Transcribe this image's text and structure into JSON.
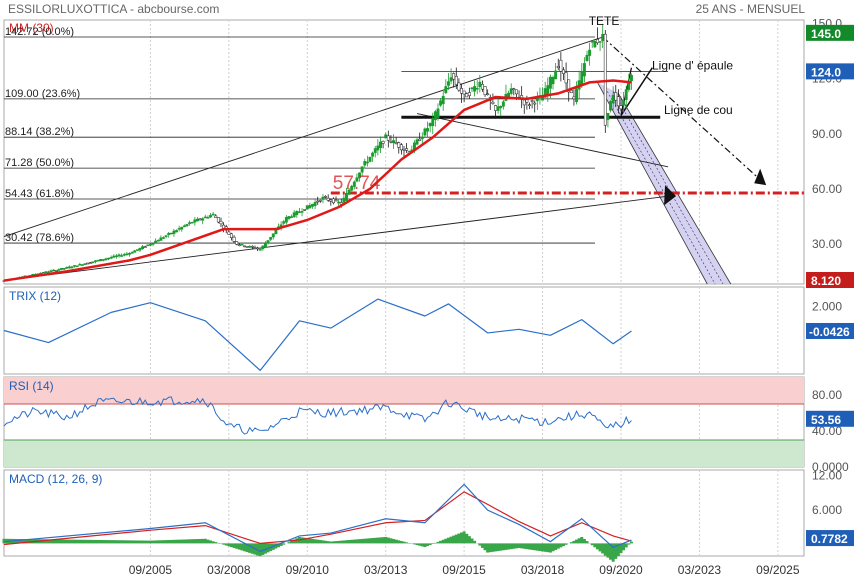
{
  "header": {
    "title": "ESSILORLUXOTTICA - abcbourse.com",
    "period": "25 ANS - MENSUEL"
  },
  "colors": {
    "price_up": "#1a9b2e",
    "price_down": "#1a1a1a",
    "ma": "#e01818",
    "trix": "#2a6fc9",
    "rsi": "#2a6fc9",
    "macd": "#2a6fc9",
    "signal": "#d42020",
    "histogram": "#3aa64a",
    "badge_up": "#138a2a",
    "badge_blue": "#1f5fb8",
    "badge_red": "#c51c1c",
    "channel": "#c9c6f0"
  },
  "chart_data": [
    {
      "id": "price",
      "type": "candlestick",
      "indicator_label": "MM (30)",
      "x_ticks": [
        "09/2005",
        "03/2008",
        "09/2010",
        "03/2013",
        "09/2015",
        "03/2018",
        "09/2020",
        "03/2023",
        "09/2025"
      ],
      "y_ticks": [
        "150.0",
        "120.0",
        "90.00",
        "60.00",
        "30.00"
      ],
      "ylim": [
        8.12,
        152
      ],
      "fibonacci": [
        {
          "label": "142.72  (0.0%)",
          "value": 142.72
        },
        {
          "label": "109.00  (23.6%)",
          "value": 109.0
        },
        {
          "label": "88.14  (38.2%)",
          "value": 88.14
        },
        {
          "label": "71.28  (50.0%)",
          "value": 71.28
        },
        {
          "label": "54.43  (61.8%)",
          "value": 54.43
        },
        {
          "label": "30.42  (78.6%)",
          "value": 30.42
        }
      ],
      "annotations": [
        "TETE",
        "Ligne d' épaule",
        "Ligne de cou",
        "57.74"
      ],
      "badges": [
        {
          "label": "145.0",
          "value": 145.0
        },
        {
          "label": "124.0",
          "value": 124.0
        },
        {
          "label": "8.120",
          "value": 8.12
        }
      ],
      "price_series": [
        {
          "date": "01/2001",
          "value": 10
        },
        {
          "date": "01/2003",
          "value": 17
        },
        {
          "date": "01/2005",
          "value": 25
        },
        {
          "date": "09/2005",
          "value": 30
        },
        {
          "date": "01/2007",
          "value": 42
        },
        {
          "date": "09/2007",
          "value": 46
        },
        {
          "date": "06/2008",
          "value": 30
        },
        {
          "date": "03/2009",
          "value": 27
        },
        {
          "date": "01/2010",
          "value": 44
        },
        {
          "date": "09/2010",
          "value": 50
        },
        {
          "date": "03/2011",
          "value": 55
        },
        {
          "date": "10/2011",
          "value": 52
        },
        {
          "date": "06/2012",
          "value": 72
        },
        {
          "date": "03/2013",
          "value": 88
        },
        {
          "date": "12/2013",
          "value": 80
        },
        {
          "date": "09/2014",
          "value": 97
        },
        {
          "date": "04/2015",
          "value": 122
        },
        {
          "date": "09/2015",
          "value": 110
        },
        {
          "date": "03/2016",
          "value": 118
        },
        {
          "date": "09/2016",
          "value": 102
        },
        {
          "date": "03/2017",
          "value": 114
        },
        {
          "date": "09/2017",
          "value": 106
        },
        {
          "date": "03/2018",
          "value": 110
        },
        {
          "date": "09/2018",
          "value": 128
        },
        {
          "date": "03/2019",
          "value": 108
        },
        {
          "date": "09/2019",
          "value": 138
        },
        {
          "date": "02/2020",
          "value": 142.72
        },
        {
          "date": "03/2020",
          "value": 96
        },
        {
          "date": "06/2020",
          "value": 112
        },
        {
          "date": "09/2020",
          "value": 104
        },
        {
          "date": "01/2021",
          "value": 124
        }
      ],
      "ma_series": [
        {
          "date": "01/2001",
          "value": 10
        },
        {
          "date": "01/2003",
          "value": 15
        },
        {
          "date": "01/2005",
          "value": 21
        },
        {
          "date": "09/2005",
          "value": 24
        },
        {
          "date": "01/2007",
          "value": 32
        },
        {
          "date": "01/2008",
          "value": 38
        },
        {
          "date": "09/2009",
          "value": 38
        },
        {
          "date": "09/2010",
          "value": 43
        },
        {
          "date": "09/2011",
          "value": 50
        },
        {
          "date": "09/2012",
          "value": 60
        },
        {
          "date": "09/2013",
          "value": 76
        },
        {
          "date": "09/2014",
          "value": 88
        },
        {
          "date": "09/2015",
          "value": 103
        },
        {
          "date": "09/2016",
          "value": 110
        },
        {
          "date": "09/2017",
          "value": 109
        },
        {
          "date": "09/2018",
          "value": 112
        },
        {
          "date": "09/2019",
          "value": 118
        },
        {
          "date": "06/2020",
          "value": 119
        },
        {
          "date": "01/2021",
          "value": 118
        }
      ]
    },
    {
      "id": "trix",
      "type": "line",
      "indicator_label": "TRIX (12)",
      "y_ticks": [
        "2.000"
      ],
      "badge": "-0.0426",
      "ylim": [
        -3.6,
        3.6
      ],
      "series": [
        {
          "date": "01/2001",
          "value": 0.0
        },
        {
          "date": "06/2002",
          "value": -1.0
        },
        {
          "date": "06/2004",
          "value": 1.5
        },
        {
          "date": "09/2005",
          "value": 2.3
        },
        {
          "date": "06/2007",
          "value": 0.8
        },
        {
          "date": "03/2009",
          "value": -3.3
        },
        {
          "date": "06/2010",
          "value": 0.8
        },
        {
          "date": "06/2011",
          "value": 0.2
        },
        {
          "date": "12/2012",
          "value": 2.6
        },
        {
          "date": "06/2014",
          "value": 1.2
        },
        {
          "date": "03/2015",
          "value": 2.2
        },
        {
          "date": "06/2016",
          "value": -0.2
        },
        {
          "date": "06/2017",
          "value": 0.1
        },
        {
          "date": "06/2018",
          "value": -0.4
        },
        {
          "date": "06/2019",
          "value": 0.9
        },
        {
          "date": "06/2020",
          "value": -1.1
        },
        {
          "date": "01/2021",
          "value": -0.04
        }
      ]
    },
    {
      "id": "rsi",
      "type": "line",
      "indicator_label": "RSI (14)",
      "y_ticks": [
        "80.00",
        "40.00",
        "0.0000"
      ],
      "badge": "53.56",
      "ylim": [
        0,
        100
      ],
      "bands": {
        "upper": 70,
        "lower": 30
      },
      "series": [
        {
          "date": "01/2001",
          "value": 50
        },
        {
          "date": "01/2002",
          "value": 62
        },
        {
          "date": "01/2003",
          "value": 55
        },
        {
          "date": "01/2004",
          "value": 72
        },
        {
          "date": "09/2005",
          "value": 73
        },
        {
          "date": "06/2007",
          "value": 75
        },
        {
          "date": "03/2008",
          "value": 45
        },
        {
          "date": "03/2009",
          "value": 38
        },
        {
          "date": "06/2010",
          "value": 62
        },
        {
          "date": "06/2011",
          "value": 60
        },
        {
          "date": "03/2013",
          "value": 66
        },
        {
          "date": "06/2014",
          "value": 52
        },
        {
          "date": "03/2015",
          "value": 72
        },
        {
          "date": "09/2016",
          "value": 52
        },
        {
          "date": "09/2017",
          "value": 54
        },
        {
          "date": "03/2018",
          "value": 50
        },
        {
          "date": "09/2019",
          "value": 60
        },
        {
          "date": "03/2020",
          "value": 42
        },
        {
          "date": "09/2020",
          "value": 48
        },
        {
          "date": "01/2021",
          "value": 53.56
        }
      ]
    },
    {
      "id": "macd",
      "type": "line",
      "indicator_label": "MACD (12, 26, 9)",
      "y_ticks": [
        "12.00",
        "6.000"
      ],
      "badge": "0.7782",
      "ylim": [
        -2,
        13
      ],
      "series": [
        {
          "name": "MACD",
          "points": [
            {
              "date": "01/2001",
              "value": 0.5
            },
            {
              "date": "09/2005",
              "value": 2.8
            },
            {
              "date": "06/2007",
              "value": 3.8
            },
            {
              "date": "03/2009",
              "value": -1.2
            },
            {
              "date": "06/2010",
              "value": 1.5
            },
            {
              "date": "06/2011",
              "value": 2.0
            },
            {
              "date": "03/2013",
              "value": 4.5
            },
            {
              "date": "06/2014",
              "value": 3.8
            },
            {
              "date": "09/2015",
              "value": 10.5
            },
            {
              "date": "06/2016",
              "value": 6.0
            },
            {
              "date": "06/2017",
              "value": 3.5
            },
            {
              "date": "06/2018",
              "value": 0.5
            },
            {
              "date": "06/2019",
              "value": 4.5
            },
            {
              "date": "06/2020",
              "value": -0.5
            },
            {
              "date": "01/2021",
              "value": 0.78
            }
          ]
        },
        {
          "name": "Signal",
          "points": [
            {
              "date": "01/2001",
              "value": 0.0
            },
            {
              "date": "09/2005",
              "value": 2.5
            },
            {
              "date": "06/2007",
              "value": 3.3
            },
            {
              "date": "03/2009",
              "value": 0.2
            },
            {
              "date": "06/2010",
              "value": 0.8
            },
            {
              "date": "06/2011",
              "value": 1.8
            },
            {
              "date": "03/2013",
              "value": 3.8
            },
            {
              "date": "06/2014",
              "value": 4.2
            },
            {
              "date": "09/2015",
              "value": 9.2
            },
            {
              "date": "06/2016",
              "value": 7.0
            },
            {
              "date": "06/2017",
              "value": 4.0
            },
            {
              "date": "06/2018",
              "value": 1.5
            },
            {
              "date": "06/2019",
              "value": 3.8
            },
            {
              "date": "06/2020",
              "value": 1.5
            },
            {
              "date": "01/2021",
              "value": 0.6
            }
          ]
        }
      ]
    }
  ]
}
